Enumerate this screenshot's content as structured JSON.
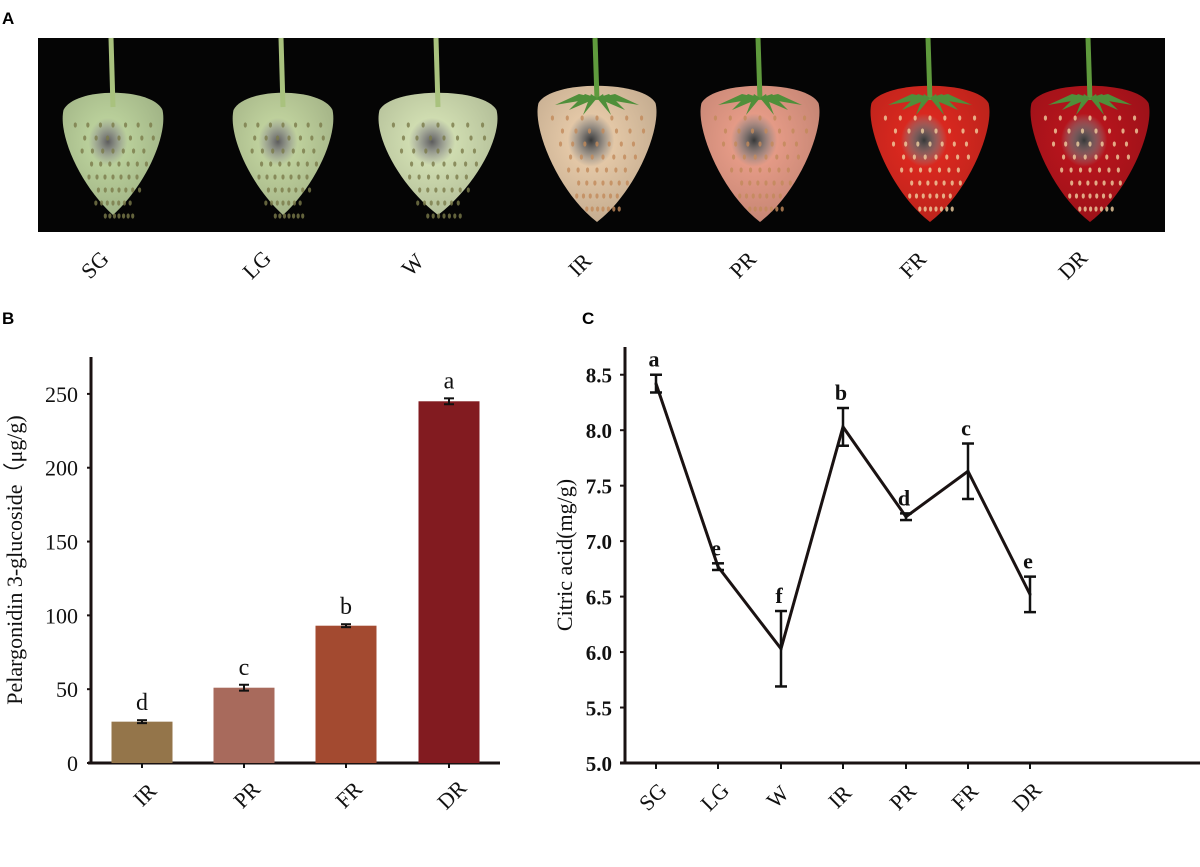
{
  "panel_a": {
    "letter": "A",
    "stages": [
      "SG",
      "LG",
      "W",
      "IR",
      "PR",
      "FR",
      "DR"
    ],
    "fruit_colors": [
      "#b9cf9a",
      "#bed09c",
      "#cfdcb0",
      "#e3c7a6",
      "#e49a86",
      "#d9281f",
      "#b5141c"
    ]
  },
  "chart_data": [
    {
      "panel_letter": "B",
      "type": "bar",
      "categories": [
        "IR",
        "PR",
        "FR",
        "DR"
      ],
      "values": [
        28,
        51,
        93,
        245
      ],
      "errors": [
        1,
        2,
        1,
        2
      ],
      "significance": [
        "d",
        "c",
        "b",
        "a"
      ],
      "colors": [
        "#94754a",
        "#a86a5c",
        "#a34a30",
        "#821b20"
      ],
      "xlabel": "",
      "ylabel": "Pelargonidin 3-glucoside（μg/g)",
      "ylim": [
        0,
        275
      ],
      "yticks": [
        "0",
        "50",
        "100",
        "150",
        "200",
        "250"
      ],
      "grid": false
    },
    {
      "panel_letter": "C",
      "type": "line",
      "categories": [
        "SG",
        "LG",
        "W",
        "IR",
        "PR",
        "FR",
        "DR"
      ],
      "values": [
        8.42,
        6.77,
        6.03,
        8.03,
        7.22,
        7.63,
        6.52
      ],
      "errors": [
        0.08,
        0.03,
        0.34,
        0.17,
        0.03,
        0.25,
        0.16
      ],
      "significance": [
        "a",
        "e",
        "f",
        "b",
        "d",
        "c",
        "e"
      ],
      "xlabel": "",
      "ylabel": "Citric acid(mg/g)",
      "ylim": [
        5.0,
        8.75
      ],
      "yticks": [
        "5.0",
        "5.5",
        "6.0",
        "6.5",
        "7.0",
        "7.5",
        "8.0",
        "8.5"
      ],
      "line_color": "#1a1212",
      "grid": false
    }
  ]
}
